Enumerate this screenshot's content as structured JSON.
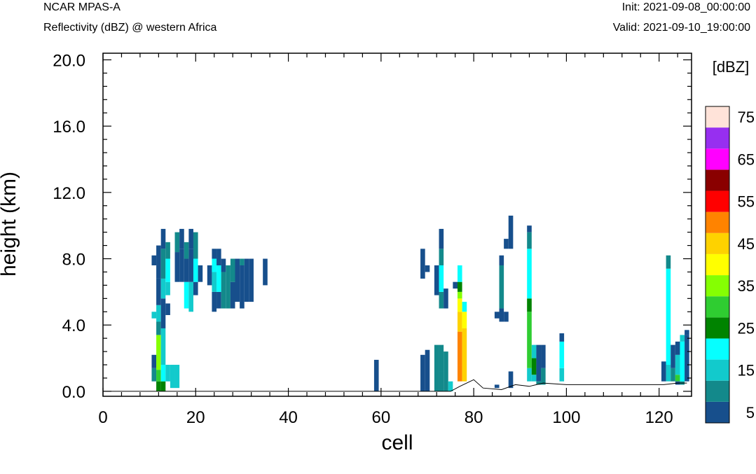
{
  "header": {
    "model": "NCAR MPAS-A",
    "field": "Reflectivity (dBZ) @ western Africa",
    "init": "Init: 2021-09-08_00:00:00",
    "valid": "Valid: 2021-09-10_19:00:00"
  },
  "chart_data": {
    "type": "heatmap",
    "title": "Reflectivity (dBZ) @ western Africa",
    "xlabel": "cell",
    "ylabel": "height (km)",
    "xlim": [
      0,
      127
    ],
    "ylim": [
      -0.3,
      20.4
    ],
    "xticks": [
      "0",
      "20",
      "40",
      "60",
      "80",
      "100",
      "120"
    ],
    "yticks": [
      "0.0",
      "4.0",
      "8.0",
      "12.0",
      "16.0",
      "20.0"
    ],
    "colorbar": {
      "unit": "[dBZ]",
      "labels": [
        "5",
        "15",
        "25",
        "35",
        "45",
        "55",
        "65",
        "75"
      ],
      "colors": [
        "#174f8c",
        "#13898b",
        "#12cacc",
        "#06ffff",
        "#008300",
        "#2fcd31",
        "#85ff02",
        "#ffff00",
        "#fed200",
        "#ff8300",
        "#ff0000",
        "#8a0000",
        "#ff00ff",
        "#972ff0",
        "#ffe3d9"
      ]
    },
    "columns": [
      {
        "x": 11,
        "bins": [
          [
            0.6,
            1.4,
            1
          ],
          [
            1.4,
            2.2,
            0
          ],
          [
            4.4,
            4.8,
            2
          ],
          [
            7.6,
            8.2,
            0
          ]
        ]
      },
      {
        "x": 12,
        "bins": [
          [
            0.0,
            0.6,
            4
          ],
          [
            0.6,
            1.3,
            5
          ],
          [
            1.3,
            3.4,
            6
          ],
          [
            3.4,
            4.2,
            1
          ],
          [
            4.2,
            5.2,
            2
          ],
          [
            5.2,
            6.8,
            0
          ],
          [
            6.8,
            8.8,
            0
          ]
        ]
      },
      {
        "x": 13,
        "bins": [
          [
            0.0,
            0.6,
            4
          ],
          [
            0.6,
            1.6,
            3
          ],
          [
            1.6,
            3.8,
            2
          ],
          [
            3.8,
            5.6,
            0
          ],
          [
            5.6,
            6.8,
            2
          ],
          [
            6.8,
            8.6,
            1
          ],
          [
            8.6,
            9.8,
            0
          ]
        ]
      },
      {
        "x": 14,
        "bins": [
          [
            0.6,
            1.6,
            2
          ],
          [
            4.6,
            5.3,
            0
          ],
          [
            5.8,
            6.6,
            2
          ],
          [
            6.6,
            8.0,
            3
          ],
          [
            8.0,
            9.0,
            1
          ]
        ]
      },
      {
        "x": 15,
        "bins": [
          [
            0.2,
            1.6,
            2
          ]
        ]
      },
      {
        "x": 16,
        "bins": [
          [
            0.2,
            1.6,
            2
          ],
          [
            6.6,
            8.4,
            0
          ],
          [
            8.4,
            9.6,
            1
          ]
        ]
      },
      {
        "x": 17,
        "bins": [
          [
            6.6,
            8.6,
            0
          ],
          [
            8.6,
            9.8,
            0
          ]
        ]
      },
      {
        "x": 18,
        "bins": [
          [
            5.0,
            6.6,
            3
          ],
          [
            6.6,
            8.0,
            0
          ],
          [
            8.0,
            9.0,
            1
          ]
        ]
      },
      {
        "x": 19,
        "bins": [
          [
            4.8,
            6.6,
            2
          ],
          [
            6.6,
            8.6,
            0
          ],
          [
            8.6,
            9.8,
            0
          ]
        ]
      },
      {
        "x": 20,
        "bins": [
          [
            5.8,
            6.6,
            0
          ],
          [
            6.6,
            8.0,
            3
          ],
          [
            8.0,
            9.6,
            1
          ]
        ]
      },
      {
        "x": 21,
        "bins": [
          [
            6.6,
            7.6,
            0
          ]
        ]
      },
      {
        "x": 23,
        "bins": [
          [
            6.4,
            7.6,
            0
          ]
        ]
      },
      {
        "x": 24,
        "bins": [
          [
            4.8,
            6.0,
            0
          ],
          [
            6.0,
            7.2,
            2
          ],
          [
            7.2,
            8.0,
            3
          ],
          [
            8.0,
            8.6,
            0
          ]
        ]
      },
      {
        "x": 25,
        "bins": [
          [
            5.0,
            6.0,
            0
          ],
          [
            6.0,
            7.6,
            3
          ],
          [
            7.6,
            8.6,
            0
          ]
        ]
      },
      {
        "x": 26,
        "bins": [
          [
            5.0,
            7.2,
            1
          ],
          [
            7.2,
            8.0,
            0
          ]
        ]
      },
      {
        "x": 27,
        "bins": [
          [
            5.0,
            7.6,
            1
          ]
        ]
      },
      {
        "x": 28,
        "bins": [
          [
            5.0,
            6.6,
            0
          ],
          [
            6.6,
            8.0,
            1
          ]
        ]
      },
      {
        "x": 29,
        "bins": [
          [
            5.4,
            8.0,
            0
          ]
        ]
      },
      {
        "x": 30,
        "bins": [
          [
            5.0,
            7.6,
            0
          ],
          [
            7.6,
            8.0,
            1
          ]
        ]
      },
      {
        "x": 31,
        "bins": [
          [
            5.4,
            8.0,
            0
          ]
        ]
      },
      {
        "x": 32,
        "bins": [
          [
            5.4,
            8.0,
            0
          ]
        ]
      },
      {
        "x": 35,
        "bins": [
          [
            6.4,
            8.0,
            0
          ]
        ]
      },
      {
        "x": 59,
        "bins": [
          [
            0.0,
            1.9,
            0
          ]
        ]
      },
      {
        "x": 69,
        "bins": [
          [
            0.0,
            2.2,
            0
          ],
          [
            6.8,
            8.6,
            0
          ]
        ]
      },
      {
        "x": 70,
        "bins": [
          [
            0.0,
            2.5,
            0
          ],
          [
            7.2,
            7.6,
            0
          ]
        ]
      },
      {
        "x": 72,
        "bins": [
          [
            0.0,
            2.8,
            1
          ],
          [
            5.8,
            7.6,
            0
          ]
        ]
      },
      {
        "x": 73,
        "bins": [
          [
            0.0,
            1.2,
            1
          ],
          [
            1.2,
            2.8,
            1
          ],
          [
            5.0,
            6.0,
            1
          ],
          [
            6.0,
            7.6,
            3
          ],
          [
            7.6,
            8.6,
            1
          ],
          [
            8.6,
            9.8,
            0
          ]
        ]
      },
      {
        "x": 74,
        "bins": [
          [
            0.0,
            2.4,
            1
          ],
          [
            5.0,
            6.2,
            0
          ]
        ]
      },
      {
        "x": 75,
        "bins": [
          [
            0.0,
            0.6,
            2
          ]
        ]
      },
      {
        "x": 76,
        "bins": [
          [
            6.2,
            6.6,
            0
          ]
        ]
      },
      {
        "x": 77,
        "bins": [
          [
            0.6,
            1.6,
            9
          ],
          [
            1.6,
            3.6,
            9
          ],
          [
            3.6,
            4.8,
            8
          ],
          [
            4.8,
            5.6,
            7
          ],
          [
            5.6,
            6.0,
            6
          ],
          [
            6.0,
            6.6,
            4
          ],
          [
            6.6,
            7.6,
            3
          ]
        ]
      },
      {
        "x": 78,
        "bins": [
          [
            0.6,
            3.8,
            8
          ],
          [
            3.8,
            4.8,
            7
          ],
          [
            4.8,
            5.4,
            3
          ]
        ]
      },
      {
        "x": 85,
        "bins": [
          [
            4.4,
            4.8,
            0
          ],
          [
            0.2,
            0.4,
            0
          ]
        ]
      },
      {
        "x": 86,
        "bins": [
          [
            4.2,
            5.0,
            0
          ],
          [
            5.0,
            7.6,
            1
          ],
          [
            7.6,
            8.2,
            0
          ]
        ]
      },
      {
        "x": 87,
        "bins": [
          [
            4.2,
            4.8,
            0
          ],
          [
            8.6,
            9.2,
            0
          ]
        ]
      },
      {
        "x": 88,
        "bins": [
          [
            0.2,
            1.2,
            0
          ],
          [
            8.6,
            10.6,
            0
          ]
        ]
      },
      {
        "x": 92,
        "bins": [
          [
            0.6,
            1.4,
            2
          ],
          [
            1.4,
            4.8,
            5
          ],
          [
            4.8,
            5.6,
            4
          ],
          [
            5.6,
            8.6,
            3
          ],
          [
            8.6,
            9.6,
            1
          ],
          [
            9.6,
            10.0,
            0
          ]
        ]
      },
      {
        "x": 93,
        "bins": [
          [
            0.6,
            1.0,
            2
          ],
          [
            1.0,
            2.0,
            4
          ],
          [
            2.0,
            2.8,
            2
          ]
        ]
      },
      {
        "x": 94,
        "bins": [
          [
            0.6,
            2.8,
            0
          ],
          [
            0.4,
            0.6,
            1
          ]
        ]
      },
      {
        "x": 95,
        "bins": [
          [
            0.4,
            1.4,
            1
          ],
          [
            1.4,
            2.8,
            0
          ]
        ]
      },
      {
        "x": 99,
        "bins": [
          [
            0.6,
            1.4,
            2
          ],
          [
            1.4,
            3.0,
            3
          ],
          [
            3.0,
            3.5,
            0
          ]
        ]
      },
      {
        "x": 121,
        "bins": [
          [
            0.6,
            1.8,
            0
          ]
        ]
      },
      {
        "x": 122,
        "bins": [
          [
            0.6,
            1.6,
            2
          ],
          [
            1.6,
            7.4,
            3
          ],
          [
            7.4,
            8.2,
            1
          ]
        ]
      },
      {
        "x": 123,
        "bins": [
          [
            0.6,
            1.4,
            1
          ],
          [
            1.4,
            2.8,
            0
          ]
        ]
      },
      {
        "x": 124,
        "bins": [
          [
            0.6,
            1.0,
            5
          ],
          [
            1.0,
            2.2,
            2
          ],
          [
            2.2,
            3.0,
            0
          ],
          [
            0.4,
            0.6,
            0
          ]
        ]
      },
      {
        "x": 125,
        "bins": [
          [
            0.6,
            3.0,
            3
          ],
          [
            3.0,
            3.4,
            2
          ],
          [
            0.4,
            0.6,
            1
          ]
        ]
      },
      {
        "x": 126,
        "bins": [
          [
            0.6,
            3.4,
            0
          ],
          [
            3.4,
            3.7,
            0
          ]
        ]
      }
    ],
    "terrain": [
      [
        0,
        0.0
      ],
      [
        75,
        0.0
      ],
      [
        77,
        0.3
      ],
      [
        80,
        0.7
      ],
      [
        82,
        0.2
      ],
      [
        86,
        0.1
      ],
      [
        89,
        0.4
      ],
      [
        92,
        0.3
      ],
      [
        95,
        0.5
      ],
      [
        100,
        0.4
      ],
      [
        110,
        0.4
      ],
      [
        121,
        0.4
      ],
      [
        124,
        0.5
      ],
      [
        126,
        0.5
      ]
    ]
  }
}
